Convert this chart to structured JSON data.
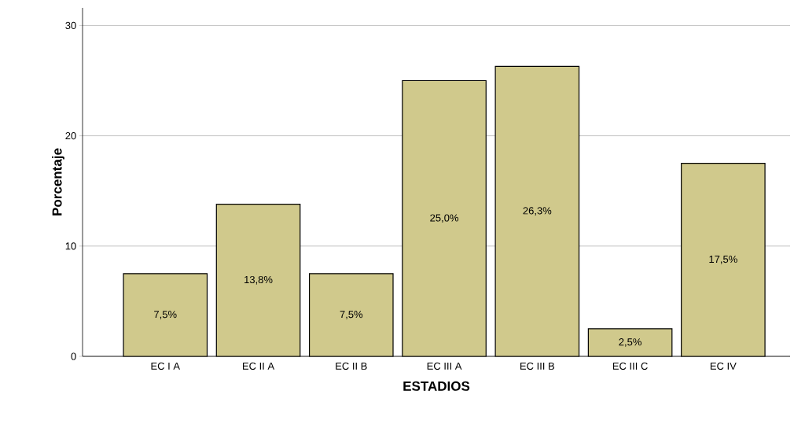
{
  "chart_data": {
    "type": "bar",
    "xlabel": "ESTADIOS",
    "ylabel": "Porcentaje",
    "categories": [
      "EC I A",
      "EC II A",
      "EC II B",
      "EC III A",
      "EC III B",
      "EC III C",
      "EC IV"
    ],
    "values": [
      7.5,
      13.8,
      7.5,
      25.0,
      26.3,
      2.5,
      17.5
    ],
    "value_labels": [
      "7,5%",
      "13,8%",
      "7,5%",
      "25,0%",
      "26,3%",
      "2,5%",
      "17,5%"
    ],
    "color": "#d0c98c",
    "ylim": [
      0,
      31.6
    ],
    "yticks": [
      0,
      10,
      20,
      30
    ],
    "grid": "y"
  }
}
